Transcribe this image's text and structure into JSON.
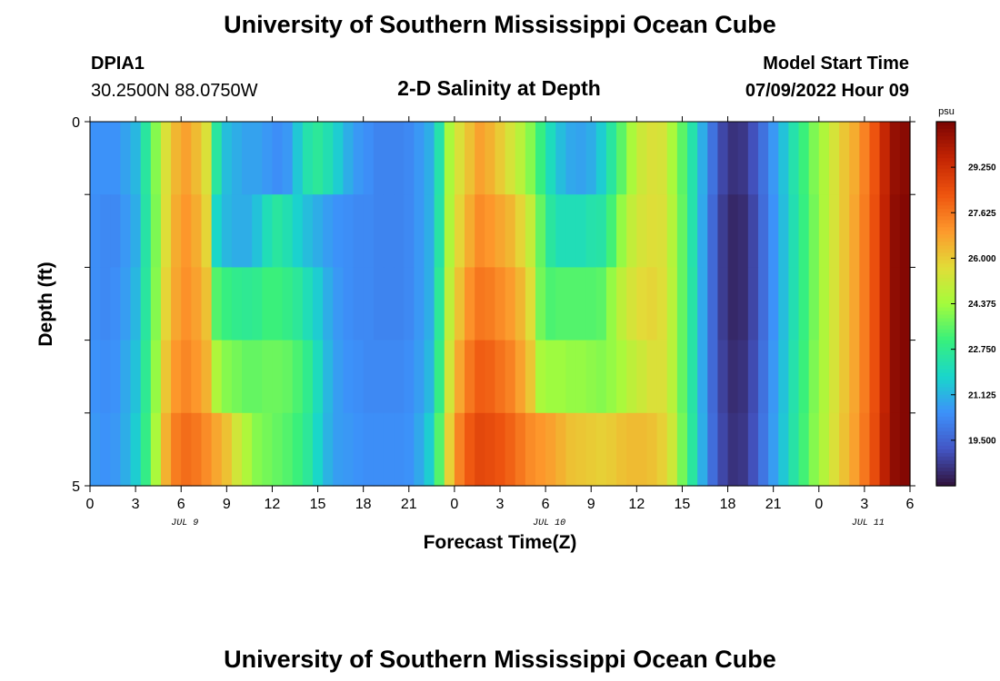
{
  "chart_data": {
    "type": "heatmap",
    "title": "University of Southern Mississippi Ocean Cube",
    "subtitle": "2-D Salinity at Depth",
    "station": "DPIA1",
    "location": "30.2500N  88.0750W",
    "model_start_label": "Model Start Time",
    "model_start_value": "07/09/2022 Hour 09",
    "xlabel": "Forecast Time(Z)",
    "ylabel": "Depth (ft)",
    "ylim": [
      0,
      5
    ],
    "ytick_labels": [
      "0",
      "5"
    ],
    "xtick_labels": [
      "0",
      "3",
      "6",
      "9",
      "12",
      "15",
      "18",
      "21",
      "0",
      "3",
      "6",
      "9",
      "12",
      "15",
      "18",
      "21",
      "0",
      "3",
      "6"
    ],
    "date_labels": [
      {
        "text": "JUL 9",
        "tick": 2
      },
      {
        "text": "JUL 10",
        "tick": 10
      },
      {
        "text": "JUL 11",
        "tick": 17
      }
    ],
    "colorbar": {
      "unit": "psu",
      "range": [
        17.875,
        30.875
      ],
      "tick_labels": [
        "19.500",
        "21.125",
        "22.750",
        "24.375",
        "26.000",
        "27.625",
        "29.250"
      ],
      "tick_values": [
        19.5,
        21.125,
        22.75,
        24.375,
        26.0,
        27.625,
        29.25
      ]
    },
    "depths_ft": [
      0.5,
      1.5,
      2.5,
      3.5,
      4.5
    ],
    "column_hours": 1,
    "salinity": [
      [
        20.5,
        20.5,
        20.5,
        20.8,
        21.2,
        22.5,
        24.0,
        25.5,
        26.4,
        26.8,
        26.3,
        25.5,
        22.5,
        21.3,
        21.0,
        20.8,
        20.8,
        20.6,
        20.4,
        20.6,
        21.5,
        22.3,
        22.6,
        22.2,
        21.6,
        21.0,
        20.6,
        20.4,
        20.2,
        20.2,
        20.2,
        20.3,
        20.6,
        21.0,
        22.3,
        24.5,
        25.5,
        26.2,
        26.8,
        26.5,
        26.0,
        25.4,
        24.8,
        24.0,
        23.0,
        22.0,
        21.3,
        20.9,
        20.8,
        21.0,
        21.6,
        22.5,
        23.5,
        24.5,
        25.2,
        25.5,
        25.4,
        24.5,
        23.5,
        22.3,
        21.0,
        19.8,
        18.9,
        18.5,
        18.6,
        19.1,
        19.8,
        20.6,
        21.4,
        22.3,
        23.1,
        23.9,
        24.6,
        25.4,
        26.1,
        26.6,
        27.4,
        28.3,
        29.5,
        30.4,
        30.6
      ],
      [
        20.4,
        20.3,
        20.3,
        20.6,
        21.0,
        22.4,
        23.9,
        25.6,
        26.6,
        27.0,
        26.6,
        25.8,
        21.8,
        21.2,
        21.0,
        21.0,
        21.4,
        22.1,
        22.5,
        22.2,
        21.7,
        21.3,
        21.0,
        20.7,
        20.5,
        20.4,
        20.3,
        20.3,
        20.2,
        20.2,
        20.2,
        20.3,
        20.6,
        21.0,
        22.4,
        24.6,
        25.8,
        26.6,
        27.2,
        27.0,
        26.7,
        26.4,
        25.8,
        25.0,
        23.6,
        22.5,
        22.1,
        22.1,
        22.1,
        22.3,
        22.4,
        23.2,
        24.2,
        25.0,
        25.4,
        25.6,
        25.5,
        24.7,
        23.6,
        22.3,
        20.9,
        19.6,
        18.7,
        18.3,
        18.4,
        18.9,
        19.7,
        20.5,
        21.3,
        22.2,
        23.0,
        23.8,
        24.6,
        25.4,
        26.1,
        26.7,
        27.5,
        28.4,
        29.6,
        30.5,
        30.7
      ],
      [
        20.4,
        20.3,
        20.4,
        20.7,
        21.2,
        22.5,
        24.0,
        25.8,
        26.7,
        27.1,
        26.8,
        26.2,
        23.4,
        23.0,
        22.8,
        22.7,
        22.8,
        23.1,
        23.1,
        22.9,
        22.6,
        22.1,
        21.6,
        21.0,
        20.6,
        20.4,
        20.3,
        20.3,
        20.2,
        20.2,
        20.2,
        20.3,
        20.6,
        21.0,
        22.6,
        24.9,
        26.2,
        27.1,
        27.6,
        27.5,
        27.2,
        26.9,
        26.4,
        25.6,
        23.8,
        23.3,
        23.4,
        23.4,
        23.4,
        23.4,
        23.5,
        24.2,
        24.9,
        25.4,
        25.7,
        25.8,
        25.6,
        24.8,
        23.6,
        22.4,
        20.9,
        19.6,
        18.7,
        18.3,
        18.4,
        18.9,
        19.7,
        20.5,
        21.3,
        22.2,
        23.0,
        23.8,
        24.6,
        25.4,
        26.1,
        26.7,
        27.5,
        28.4,
        29.6,
        30.5,
        30.7
      ],
      [
        20.5,
        20.4,
        20.5,
        20.9,
        21.4,
        22.7,
        24.2,
        26.1,
        27.0,
        27.3,
        27.0,
        26.5,
        24.6,
        24.0,
        23.8,
        23.6,
        23.6,
        23.7,
        23.7,
        23.6,
        23.3,
        22.8,
        22.0,
        21.2,
        20.7,
        20.5,
        20.4,
        20.3,
        20.3,
        20.3,
        20.3,
        20.4,
        20.7,
        21.2,
        22.9,
        25.3,
        26.7,
        27.6,
        28.1,
        28.0,
        27.7,
        27.4,
        26.8,
        26.1,
        24.5,
        24.3,
        24.3,
        24.2,
        24.2,
        24.1,
        24.0,
        24.2,
        24.5,
        24.9,
        25.2,
        25.5,
        25.5,
        24.8,
        23.6,
        22.4,
        20.9,
        19.6,
        18.8,
        18.4,
        18.5,
        19.0,
        19.8,
        20.6,
        21.4,
        22.3,
        23.1,
        23.9,
        24.6,
        25.4,
        26.1,
        26.7,
        27.5,
        28.4,
        29.6,
        30.5,
        30.7
      ],
      [
        20.6,
        20.5,
        20.6,
        21.0,
        21.6,
        22.9,
        24.5,
        26.5,
        27.5,
        27.8,
        27.6,
        27.2,
        26.7,
        26.2,
        25.3,
        24.6,
        24.0,
        23.8,
        23.6,
        23.4,
        23.1,
        22.6,
        21.8,
        21.1,
        20.7,
        20.6,
        20.5,
        20.4,
        20.4,
        20.4,
        20.4,
        20.5,
        20.9,
        21.6,
        23.4,
        25.9,
        27.4,
        28.2,
        28.6,
        28.5,
        28.3,
        28.0,
        27.6,
        27.2,
        27.0,
        26.8,
        26.5,
        26.2,
        26.1,
        26.0,
        25.9,
        26.0,
        26.2,
        26.3,
        26.3,
        26.2,
        25.9,
        25.2,
        23.8,
        22.5,
        21.0,
        19.7,
        18.9,
        18.5,
        18.6,
        19.1,
        19.9,
        20.7,
        21.5,
        22.4,
        23.2,
        24.0,
        24.7,
        25.5,
        26.2,
        26.8,
        27.6,
        28.5,
        29.7,
        30.5,
        30.7
      ]
    ]
  }
}
